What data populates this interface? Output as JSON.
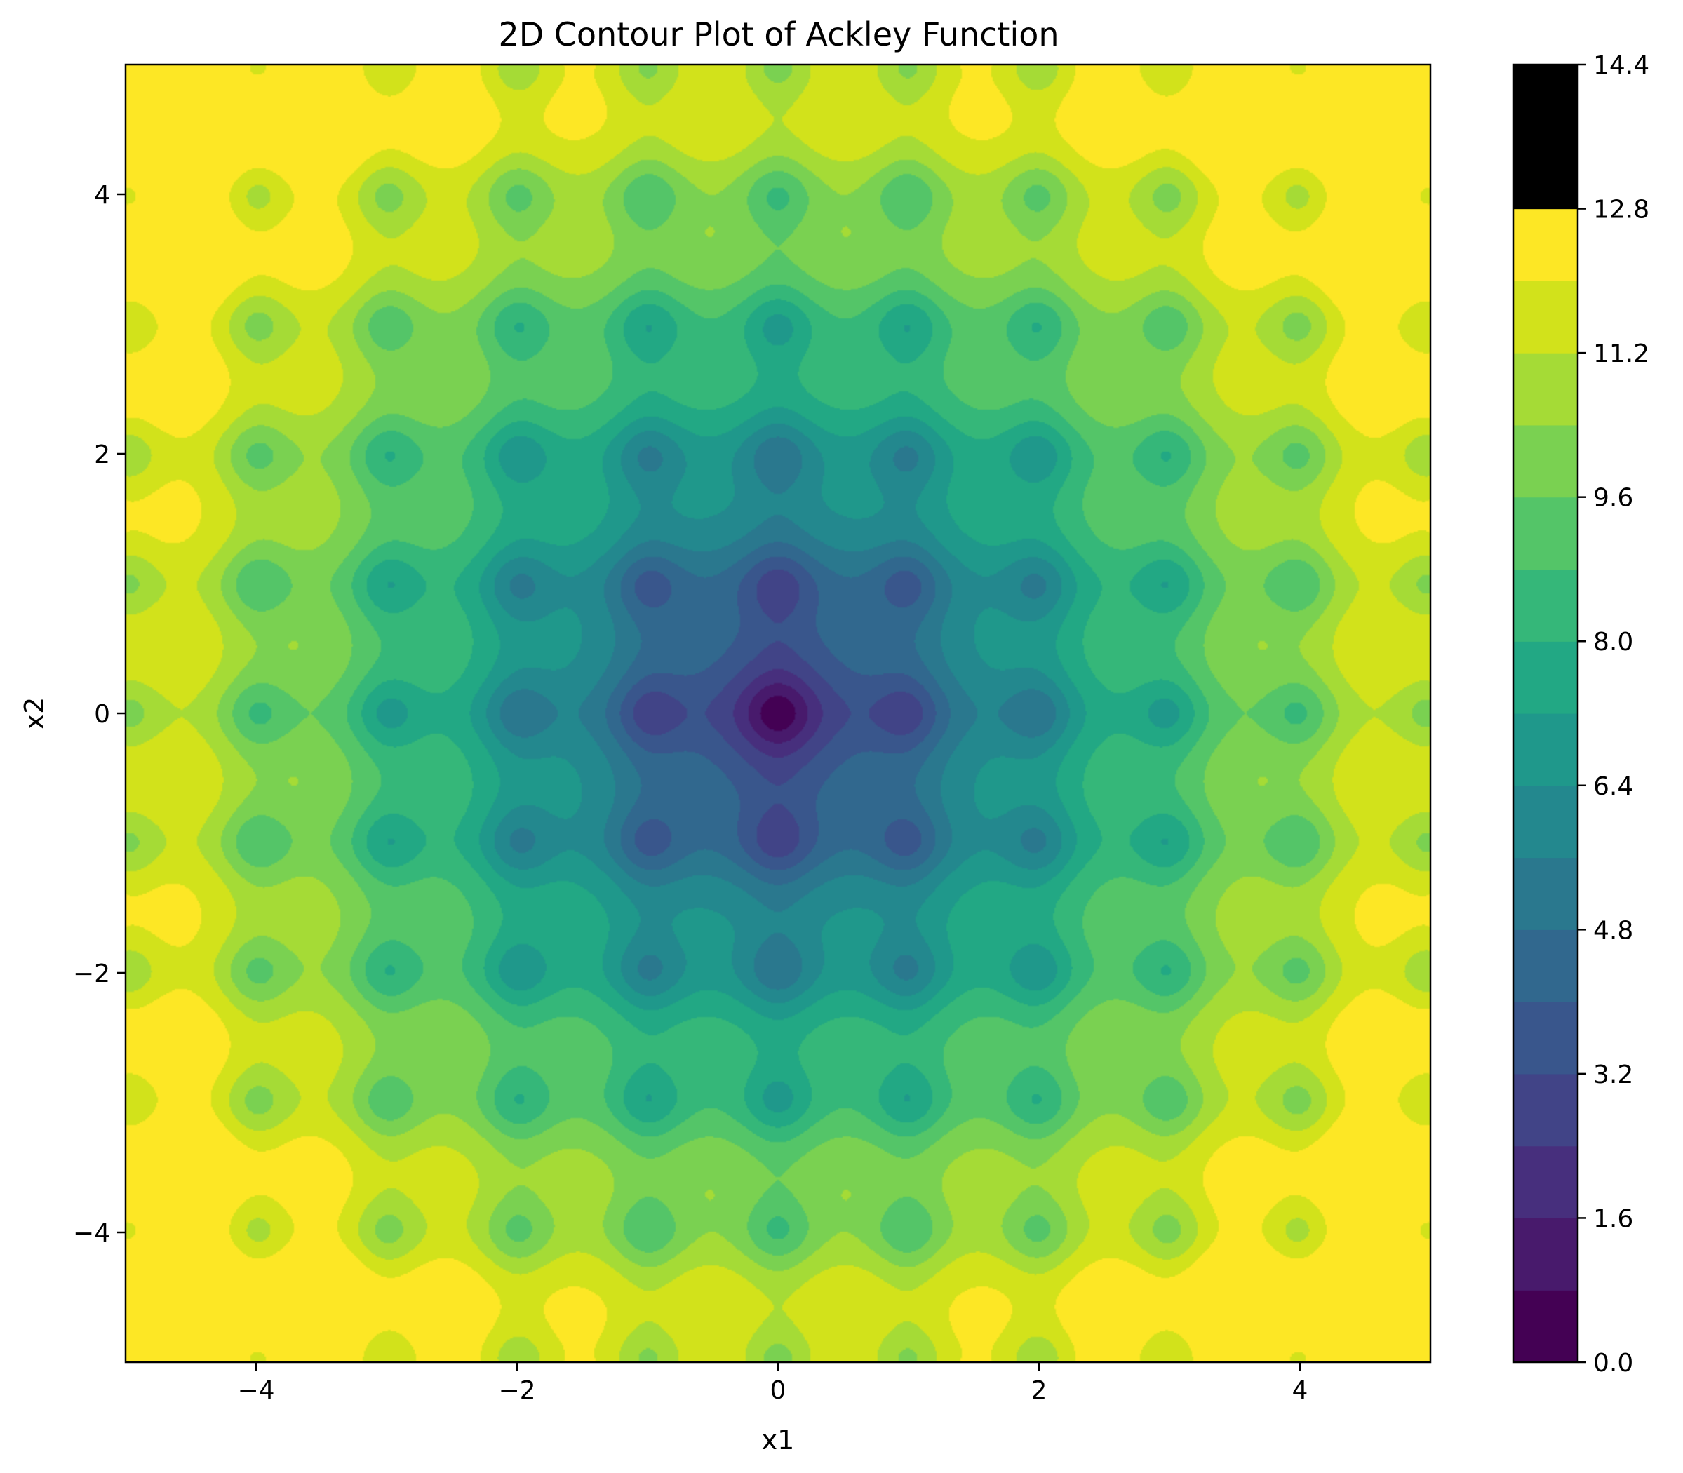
{
  "chart_data": {
    "type": "contour",
    "title": "2D Contour Plot of Ackley Function",
    "function": "Ackley",
    "xlabel": "x1",
    "ylabel": "x2",
    "xlim": [
      -5,
      5
    ],
    "ylim": [
      -5,
      5
    ],
    "xticks": [
      -4,
      -2,
      0,
      2,
      4
    ],
    "yticks": [
      -4,
      -2,
      0,
      2,
      4
    ],
    "xtick_labels": [
      "−4",
      "−2",
      "0",
      "2",
      "4"
    ],
    "ytick_labels": [
      "−4",
      "−2",
      "0",
      "2",
      "4"
    ],
    "colorbar": {
      "levels": [
        0.0,
        0.8,
        1.6,
        2.4,
        3.2,
        4.0,
        4.8,
        5.6,
        6.4,
        7.2,
        8.0,
        8.8,
        9.6,
        10.4,
        11.2,
        12.0,
        12.8,
        13.6,
        14.4
      ],
      "ticks": [
        0.0,
        1.6,
        3.2,
        4.8,
        6.4,
        8.0,
        9.6,
        11.2,
        12.8,
        14.4
      ],
      "tick_labels": [
        "0.0",
        "1.6",
        "3.2",
        "4.8",
        "6.4",
        "8.0",
        "9.6",
        "11.2",
        "12.8",
        "14.4"
      ],
      "colormap": "viridis",
      "colors": [
        "#440154",
        "#481a6c",
        "#472f7d",
        "#414487",
        "#39568c",
        "#31688e",
        "#2a788e",
        "#23888e",
        "#1f988b",
        "#22a884",
        "#35b779",
        "#54c568",
        "#7ad151",
        "#a5db36",
        "#d2e21b",
        "#fde725"
      ]
    },
    "minimum": {
      "x1": 0,
      "x2": 0,
      "value": 0.0
    },
    "max_value_in_view": 14.3,
    "grid": false
  }
}
